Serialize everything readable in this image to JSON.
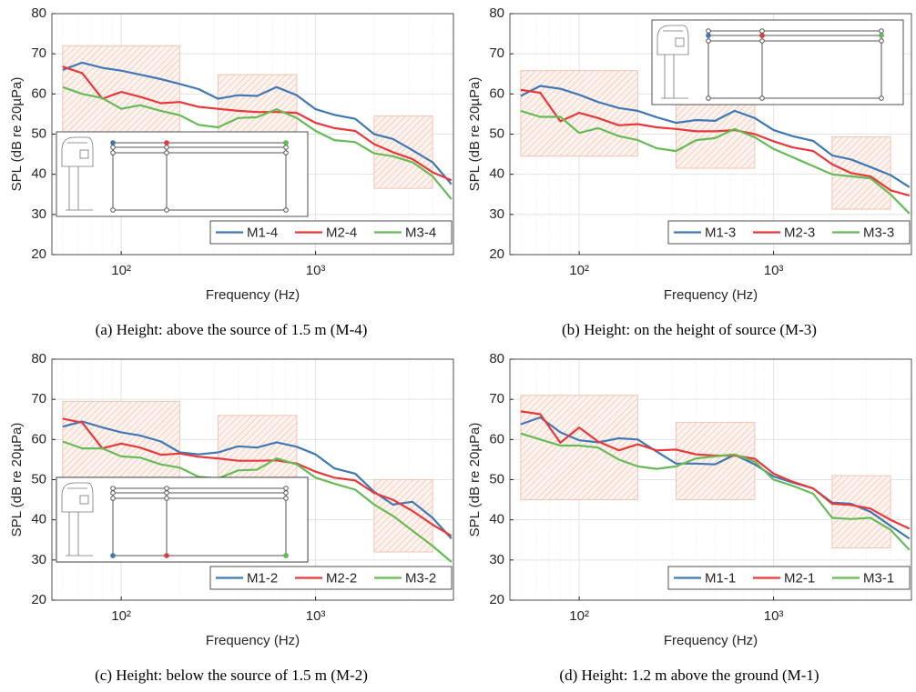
{
  "chart_data": [
    {
      "type": "line",
      "caption": "(a) Height: above the source of 1.5 m (M-4)",
      "xlabel": "Frequency (Hz)",
      "ylabel": "SPL (dB re 20µPa)",
      "x": [
        50,
        63,
        80,
        100,
        125,
        160,
        200,
        250,
        315,
        400,
        500,
        630,
        800,
        1000,
        1250,
        1600,
        2000,
        2500,
        3150,
        4000,
        5000
      ],
      "xscale": "log",
      "xlim": [
        44,
        5120
      ],
      "xticks": [
        {
          "value": 100,
          "label": "10²"
        },
        {
          "value": 1000,
          "label": "10³"
        }
      ],
      "ylim": [
        20,
        80
      ],
      "yticks": [
        20,
        30,
        40,
        50,
        60,
        70,
        80
      ],
      "grid": true,
      "legend": "lower right",
      "series": [
        {
          "name": "M1-4",
          "color": "#3f78b3",
          "values": [
            66,
            67.8,
            66.5,
            65.8,
            64.8,
            63.7,
            62.5,
            61.2,
            58.8,
            59.7,
            59.5,
            61.7,
            59.7,
            56.2,
            54.8,
            53.8,
            50,
            48.8,
            46,
            43,
            37.5
          ]
        },
        {
          "name": "M2-4",
          "color": "#e8383a",
          "values": [
            66.8,
            65.2,
            58.8,
            60.5,
            59.3,
            57.7,
            58,
            56.8,
            56.3,
            55.8,
            55.5,
            55.5,
            55.3,
            52.8,
            51.5,
            50.8,
            47.5,
            45.5,
            43.8,
            40.5,
            38.5
          ]
        },
        {
          "name": "M3-4",
          "color": "#66bb56",
          "values": [
            61.7,
            60,
            59,
            56.3,
            57.2,
            55.8,
            54.7,
            52.3,
            51.7,
            54,
            54.2,
            56.2,
            54,
            50.8,
            48.5,
            48,
            45.2,
            44.5,
            43,
            39.5,
            33.8
          ]
        }
      ],
      "regions": [
        {
          "x": [
            50,
            200
          ],
          "y": [
            46,
            72
          ]
        },
        {
          "x": [
            315,
            800
          ],
          "y": [
            45.5,
            64.8
          ]
        },
        {
          "x": [
            2000,
            4000
          ],
          "y": [
            36.5,
            54.5
          ]
        }
      ]
    },
    {
      "type": "line",
      "caption": "(b) Height: on the height of source (M-3)",
      "xlabel": "Frequency (Hz)",
      "ylabel": "SPL (dB re 20µPa)",
      "x": [
        50,
        63,
        80,
        100,
        125,
        160,
        200,
        250,
        315,
        400,
        500,
        630,
        800,
        1000,
        1250,
        1600,
        2000,
        2500,
        3150,
        4000,
        5000
      ],
      "xscale": "log",
      "xlim": [
        44,
        5120
      ],
      "xticks": [
        {
          "value": 100,
          "label": "10²"
        },
        {
          "value": 1000,
          "label": "10³"
        }
      ],
      "ylim": [
        20,
        80
      ],
      "yticks": [
        20,
        30,
        40,
        50,
        60,
        70,
        80
      ],
      "grid": true,
      "legend": "lower right",
      "series": [
        {
          "name": "M1-3",
          "color": "#3f78b3",
          "values": [
            59.5,
            62,
            61.3,
            59.8,
            58,
            56.5,
            55.8,
            54.2,
            52.8,
            53.5,
            53.3,
            55.8,
            54,
            51,
            49.5,
            48.3,
            44.7,
            43.7,
            41.8,
            39.8,
            36.8
          ]
        },
        {
          "name": "M2-3",
          "color": "#e8383a",
          "values": [
            61,
            60.3,
            53.2,
            55.3,
            54,
            52.2,
            52.5,
            51.7,
            51.3,
            50.7,
            50.7,
            51,
            50,
            48.2,
            46.7,
            45.8,
            42.5,
            40.3,
            39.5,
            36,
            34.7
          ]
        },
        {
          "name": "M3-3",
          "color": "#66bb56",
          "values": [
            55.8,
            54.3,
            54.3,
            50.3,
            51.5,
            49.5,
            48.5,
            46.5,
            45.8,
            48.5,
            49,
            51.3,
            49.2,
            46.3,
            44.3,
            42,
            40,
            39.5,
            39,
            35,
            30.2
          ]
        }
      ],
      "regions": [
        {
          "x": [
            50,
            200
          ],
          "y": [
            44.5,
            65.8
          ]
        },
        {
          "x": [
            315,
            800
          ],
          "y": [
            41.5,
            58
          ]
        },
        {
          "x": [
            2000,
            4000
          ],
          "y": [
            31.3,
            49.3
          ]
        }
      ]
    },
    {
      "type": "line",
      "caption": "(c) Height: below the source of 1.5 m (M-2)",
      "xlabel": "Frequency (Hz)",
      "ylabel": "SPL (dB re 20µPa)",
      "x": [
        50,
        63,
        80,
        100,
        125,
        160,
        200,
        250,
        315,
        400,
        500,
        630,
        800,
        1000,
        1250,
        1600,
        2000,
        2500,
        3150,
        4000,
        5000
      ],
      "xscale": "log",
      "xlim": [
        44,
        5120
      ],
      "xticks": [
        {
          "value": 100,
          "label": "10²"
        },
        {
          "value": 1000,
          "label": "10³"
        }
      ],
      "ylim": [
        20,
        80
      ],
      "yticks": [
        20,
        30,
        40,
        50,
        60,
        70,
        80
      ],
      "grid": true,
      "legend": "lower right",
      "series": [
        {
          "name": "M1-2",
          "color": "#3f78b3",
          "values": [
            63.2,
            64.5,
            63,
            61.8,
            61,
            59.5,
            56.8,
            56.3,
            56.8,
            58.3,
            58,
            59.3,
            58.2,
            56.3,
            52.8,
            51.5,
            47,
            43.8,
            44.5,
            40.5,
            35.3
          ]
        },
        {
          "name": "M2-2",
          "color": "#e8383a",
          "values": [
            65.2,
            64.2,
            57.8,
            59,
            58,
            56.2,
            56.5,
            55.7,
            55.3,
            54.7,
            54.7,
            54.8,
            54,
            52,
            50.5,
            49.8,
            46.7,
            45,
            42.2,
            38.8,
            36
          ]
        },
        {
          "name": "M3-2",
          "color": "#66bb56",
          "values": [
            59.5,
            57.8,
            57.8,
            55.8,
            55.5,
            53.8,
            53,
            50.7,
            50.3,
            52.3,
            52.5,
            55.3,
            53.8,
            50.5,
            49,
            47.5,
            43.8,
            41,
            37.3,
            33.5,
            29.5
          ]
        }
      ],
      "regions": [
        {
          "x": [
            50,
            200
          ],
          "y": [
            49,
            69.5
          ]
        },
        {
          "x": [
            315,
            800
          ],
          "y": [
            46.8,
            66
          ]
        },
        {
          "x": [
            2000,
            4000
          ],
          "y": [
            32,
            50
          ]
        }
      ]
    },
    {
      "type": "line",
      "caption": "(d) Height: 1.2 m above the ground (M-1)",
      "xlabel": "Frequency (Hz)",
      "ylabel": "SPL (dB re 20µPa)",
      "x": [
        50,
        63,
        80,
        100,
        125,
        160,
        200,
        250,
        315,
        400,
        500,
        630,
        800,
        1000,
        1250,
        1600,
        2000,
        2500,
        3150,
        4000,
        5000
      ],
      "xscale": "log",
      "xlim": [
        44,
        5120
      ],
      "xticks": [
        {
          "value": 100,
          "label": "10²"
        },
        {
          "value": 1000,
          "label": "10³"
        }
      ],
      "ylim": [
        20,
        80
      ],
      "yticks": [
        20,
        30,
        40,
        50,
        60,
        70,
        80
      ],
      "grid": true,
      "legend": "lower right",
      "series": [
        {
          "name": "M1-1",
          "color": "#3f78b3",
          "values": [
            63.8,
            65.5,
            61.8,
            59.8,
            59.3,
            60.3,
            60,
            57,
            54,
            54,
            53.8,
            56.2,
            53.8,
            50.8,
            49.3,
            47.8,
            44.3,
            44,
            42,
            38.5,
            35.3
          ]
        },
        {
          "name": "M2-1",
          "color": "#e8383a",
          "values": [
            67,
            66.3,
            59.2,
            63,
            59.5,
            57.3,
            58.8,
            57.3,
            57.5,
            56.3,
            56,
            56,
            55.2,
            51.5,
            49.5,
            47.8,
            44,
            43.7,
            42.8,
            40,
            37.8
          ]
        },
        {
          "name": "M3-1",
          "color": "#66bb56",
          "values": [
            61.5,
            60,
            58.5,
            58.5,
            58,
            55,
            53.3,
            52.7,
            53.3,
            55.3,
            55.8,
            56.3,
            54.5,
            50,
            48.5,
            46.5,
            40.5,
            40.2,
            40.5,
            37.5,
            32.5
          ]
        }
      ],
      "regions": [
        {
          "x": [
            50,
            200
          ],
          "y": [
            45,
            71
          ]
        },
        {
          "x": [
            315,
            800
          ],
          "y": [
            45,
            64.3
          ]
        },
        {
          "x": [
            2000,
            4000
          ],
          "y": [
            33,
            51
          ]
        }
      ]
    }
  ]
}
